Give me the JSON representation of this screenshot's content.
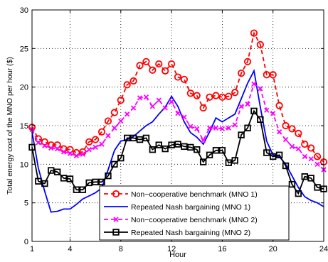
{
  "chart_data": {
    "type": "line",
    "title": "",
    "xlabel": "Hour",
    "ylabel": "Total energy cost of the MNO per hour ($)",
    "xlim": [
      1,
      24
    ],
    "ylim": [
      0,
      30
    ],
    "xticks": [
      1,
      4,
      8,
      12,
      16,
      20,
      24
    ],
    "yticks": [
      0,
      5,
      10,
      15,
      20,
      25,
      30
    ],
    "grid": true,
    "legend_position": "bottom-right",
    "series": [
      {
        "name": "Non−cooperative benchmark (MNO 1)",
        "color": "#ff0000",
        "line_style": "dashed",
        "marker": "circle",
        "x": [
          1,
          1.5,
          2,
          2.5,
          3,
          3.5,
          4,
          4.5,
          5,
          5.5,
          6,
          6.5,
          7,
          7.5,
          8,
          8.5,
          9,
          9.5,
          10,
          10.5,
          11,
          11.5,
          12,
          12.5,
          13,
          13.5,
          14,
          14.5,
          15,
          15.5,
          16,
          16.5,
          17,
          17.5,
          18,
          18.5,
          19,
          19.5,
          20,
          20.5,
          21,
          21.5,
          22,
          22.5,
          23,
          23.5,
          24
        ],
        "values": [
          14.8,
          13.3,
          12.9,
          12.5,
          12.5,
          12.0,
          11.9,
          11.5,
          11.6,
          12.9,
          13.2,
          14.2,
          15.6,
          16.7,
          18.3,
          20.3,
          20.8,
          22.8,
          23.3,
          22.2,
          23.0,
          22.1,
          23.0,
          21.3,
          21.0,
          19.2,
          18.9,
          17.3,
          18.7,
          18.9,
          18.7,
          18.8,
          19.3,
          21.8,
          23.3,
          27.0,
          25.5,
          21.6,
          21.6,
          17.6,
          15.0,
          14.6,
          14.0,
          12.6,
          12.1,
          11.0,
          10.3
        ]
      },
      {
        "name": "Repeated Nash bargaining (MNO 1)",
        "color": "#0000ff",
        "line_style": "solid",
        "marker": "none",
        "x": [
          1,
          1.5,
          2,
          2.5,
          3,
          3.5,
          4,
          4.5,
          5,
          5.5,
          6,
          6.5,
          7,
          7.5,
          8,
          8.5,
          9,
          9.5,
          10,
          10.5,
          11,
          11.5,
          12,
          12.5,
          13,
          13.5,
          14,
          14.5,
          15,
          15.5,
          16,
          16.5,
          17,
          17.5,
          18,
          18.5,
          19,
          19.5,
          20,
          20.5,
          21,
          21.5,
          22,
          22.5,
          23,
          23.5,
          24
        ],
        "values": [
          14.2,
          9.5,
          6.5,
          3.8,
          3.9,
          4.2,
          4.2,
          4.8,
          5.5,
          5.9,
          6.3,
          6.9,
          9.3,
          11.8,
          13.0,
          13.2,
          13.6,
          14.3,
          15.0,
          15.5,
          16.5,
          17.4,
          18.8,
          17.5,
          15.5,
          14.1,
          13.5,
          12.6,
          14.2,
          16.0,
          15.5,
          16.0,
          16.5,
          18.5,
          20.5,
          22.1,
          17.4,
          13.0,
          11.2,
          11.0,
          10.0,
          8.5,
          7.0,
          5.8,
          5.3,
          5.0,
          4.5
        ]
      },
      {
        "name": "Non−cooperative benchmark (MNO 2)",
        "color": "#ff00ff",
        "line_style": "dashed",
        "marker": "x",
        "x": [
          1,
          1.5,
          2,
          2.5,
          3,
          3.5,
          4,
          4.5,
          5,
          5.5,
          6,
          6.5,
          7,
          7.5,
          8,
          8.5,
          9,
          9.5,
          10,
          10.5,
          11,
          11.5,
          12,
          12.5,
          13,
          13.5,
          14,
          14.5,
          15,
          15.5,
          16,
          16.5,
          17,
          17.5,
          18,
          18.5,
          19,
          19.5,
          20,
          20.5,
          21,
          21.5,
          22,
          22.5,
          23,
          23.5,
          24
        ],
        "values": [
          14.5,
          12.8,
          12.4,
          12.1,
          12.0,
          11.6,
          11.4,
          11.1,
          11.3,
          11.9,
          12.2,
          12.6,
          13.7,
          14.7,
          15.6,
          16.5,
          17.3,
          18.6,
          18.7,
          17.5,
          18.3,
          17.3,
          18.1,
          16.6,
          16.1,
          14.9,
          14.6,
          13.1,
          14.7,
          14.7,
          14.6,
          14.7,
          15.1,
          17.5,
          17.8,
          20.4,
          19.8,
          17.0,
          16.6,
          14.2,
          13.2,
          12.3,
          12.0,
          11.0,
          10.7,
          10.0,
          9.3
        ]
      },
      {
        "name": "Repeated Nash bargaining (MNO 2)",
        "color": "#000000",
        "line_style": "solid",
        "marker": "square",
        "x": [
          1,
          1.5,
          2,
          2.5,
          3,
          3.5,
          4,
          4.5,
          5,
          5.5,
          6,
          6.5,
          7,
          7.5,
          8,
          8.5,
          9,
          9.5,
          10,
          10.5,
          11,
          11.5,
          12,
          12.5,
          13,
          13.5,
          14,
          14.5,
          15,
          15.5,
          16,
          16.5,
          17,
          17.5,
          18,
          18.5,
          19,
          19.5,
          20,
          20.5,
          21,
          21.5,
          22,
          22.5,
          23,
          23.5,
          24
        ],
        "values": [
          12.2,
          7.8,
          7.5,
          9.2,
          9.0,
          8.2,
          8.1,
          6.7,
          6.7,
          7.6,
          7.7,
          7.7,
          8.5,
          10.0,
          10.8,
          13.4,
          13.4,
          13.2,
          13.4,
          11.9,
          12.5,
          12.0,
          12.5,
          12.6,
          12.3,
          12.2,
          11.9,
          10.3,
          11.2,
          11.8,
          11.8,
          10.2,
          10.5,
          13.8,
          14.7,
          16.9,
          15.8,
          11.5,
          11.0,
          11.2,
          9.8,
          7.4,
          6.2,
          8.4,
          8.2,
          7.0,
          6.8
        ]
      }
    ]
  }
}
